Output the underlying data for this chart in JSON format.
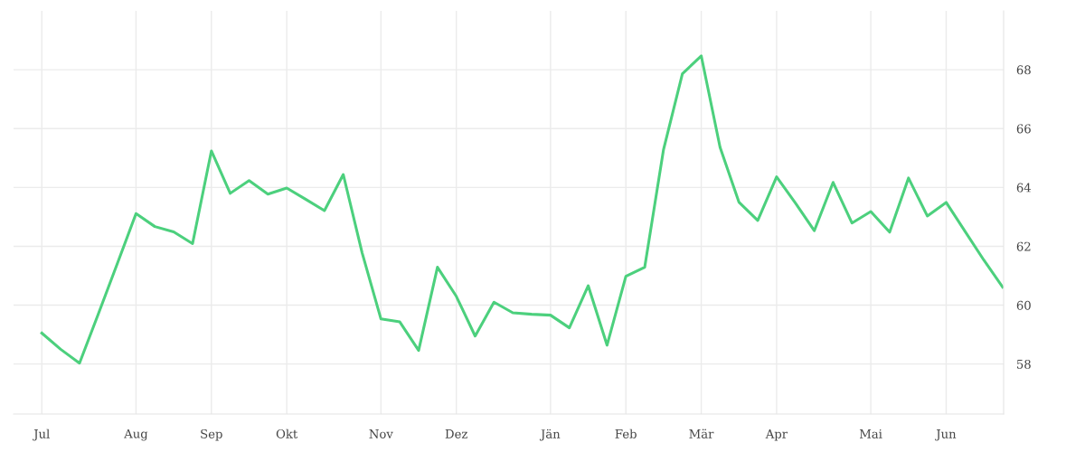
{
  "chart_data": {
    "type": "line",
    "categories": [
      "Jul",
      null,
      null,
      null,
      null,
      "Aug",
      null,
      null,
      null,
      "Sep",
      null,
      null,
      null,
      "Okt",
      null,
      null,
      null,
      null,
      "Nov",
      null,
      null,
      null,
      "Dez",
      null,
      null,
      null,
      null,
      "Jän",
      null,
      null,
      null,
      "Feb",
      null,
      null,
      null,
      "Mär",
      null,
      null,
      null,
      "Apr",
      null,
      null,
      null,
      null,
      "Mai",
      null,
      null,
      null,
      "Jun",
      null,
      null,
      null
    ],
    "series": [
      {
        "color": "#4cd07d",
        "values": [
          59.05,
          58.5,
          58.03,
          59.7,
          61.4,
          63.11,
          62.67,
          62.49,
          62.09,
          65.24,
          63.8,
          64.23,
          63.77,
          63.98,
          63.6,
          63.21,
          64.44,
          61.78,
          59.53,
          59.43,
          58.46,
          61.29,
          60.3,
          58.95,
          60.1,
          59.74,
          59.69,
          59.66,
          59.23,
          60.66,
          58.64,
          60.98,
          61.29,
          65.29,
          67.86,
          68.47,
          65.36,
          63.5,
          62.88,
          64.36,
          63.47,
          62.53,
          64.17,
          62.79,
          63.18,
          62.48,
          64.32,
          63.03,
          63.49,
          62.51,
          61.53,
          60.61
        ]
      }
    ],
    "ylim": [
      56.3,
      70
    ],
    "yticks": [
      58,
      60,
      62,
      64,
      66,
      68
    ],
    "grid": true,
    "marker": "none",
    "line_style": "solid"
  }
}
